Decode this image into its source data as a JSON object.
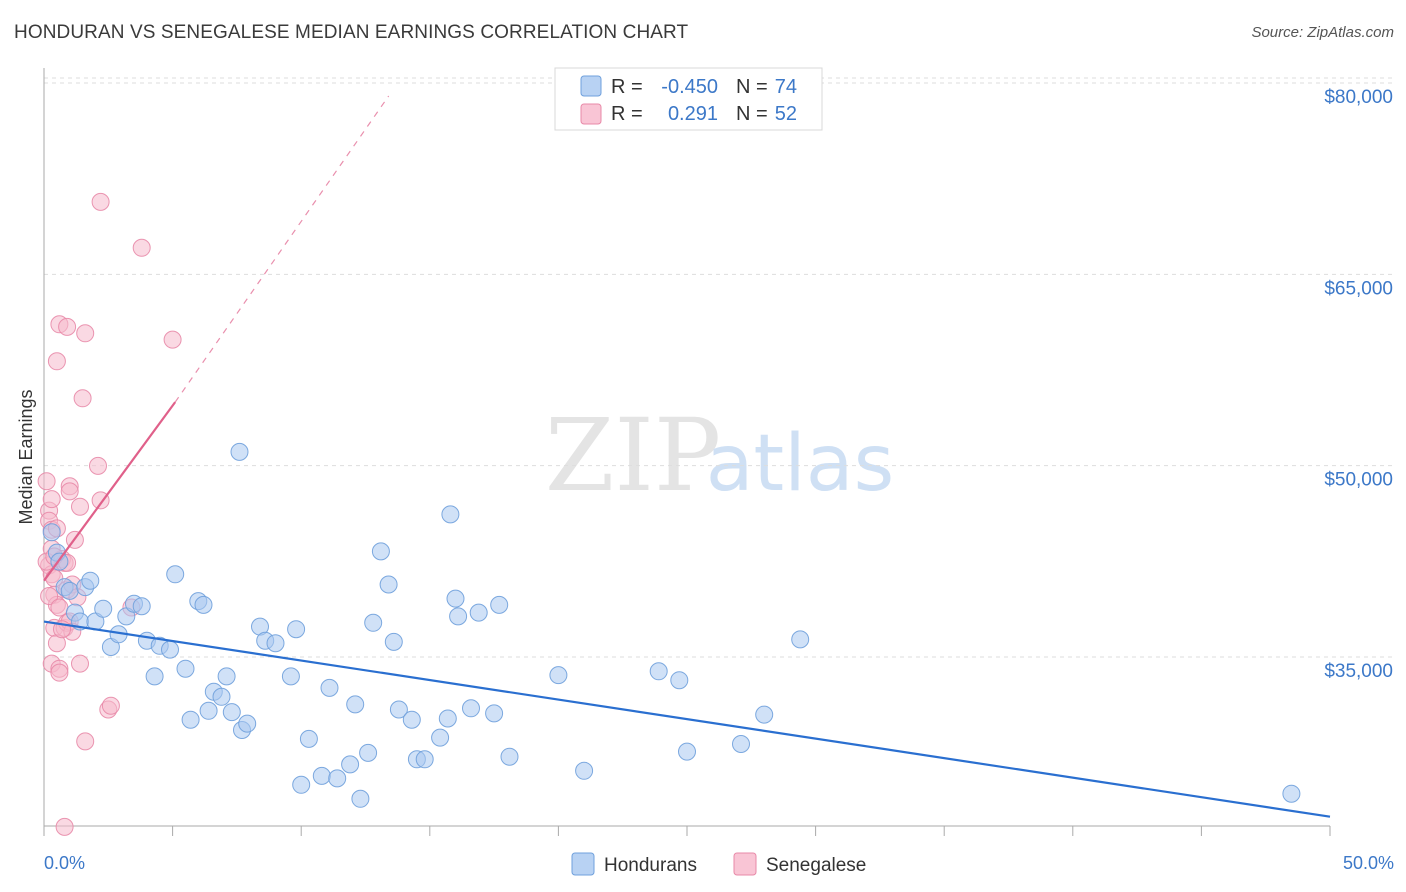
{
  "title": "HONDURAN VS SENEGALESE MEDIAN EARNINGS CORRELATION CHART",
  "source": "Source: ZipAtlas.com",
  "watermark": {
    "zip": "ZIP",
    "atlas": "atlas"
  },
  "colors": {
    "blue_fill": "#a9c8f0",
    "blue_stroke": "#6fa0dc",
    "blue_line": "#2a6fd0",
    "pink_fill": "#f6b9cc",
    "pink_stroke": "#e889a8",
    "pink_line": "#e0608a",
    "grid": "#dddddd",
    "tick_text": "#3c78c8"
  },
  "legend": {
    "rows": [
      {
        "r_label": "R =",
        "r_value": "-0.450",
        "n_label": "N =",
        "n_value": "74"
      },
      {
        "r_label": "R =",
        "r_value": "0.291",
        "n_label": "N =",
        "n_value": "52"
      }
    ]
  },
  "chart_data": {
    "type": "scatter",
    "title": "HONDURAN VS SENEGALESE MEDIAN EARNINGS CORRELATION CHART",
    "xlabel": "",
    "ylabel": "Median Earnings",
    "xlim": [
      0,
      50
    ],
    "ylim": [
      20000,
      82000
    ],
    "x_tick_labels": [
      "0.0%",
      "50.0%"
    ],
    "y_ticks": [
      35000,
      50000,
      65000,
      80000
    ],
    "y_tick_labels": [
      "$35,000",
      "$50,000",
      "$65,000",
      "$80,000"
    ],
    "series": [
      {
        "name": "Hondurans",
        "r": -0.45,
        "n": 74,
        "trend": {
          "x": [
            0,
            50
          ],
          "y": [
            38800,
            23500
          ],
          "dashed_extension": false
        },
        "points": [
          [
            0.3,
            45800
          ],
          [
            0.5,
            44200
          ],
          [
            0.6,
            43500
          ],
          [
            0.8,
            41500
          ],
          [
            1.0,
            41200
          ],
          [
            1.2,
            39500
          ],
          [
            1.4,
            38800
          ],
          [
            1.6,
            41500
          ],
          [
            1.8,
            42000
          ],
          [
            2.0,
            38800
          ],
          [
            2.3,
            39800
          ],
          [
            2.6,
            36800
          ],
          [
            2.9,
            37800
          ],
          [
            3.2,
            39200
          ],
          [
            3.5,
            40200
          ],
          [
            3.8,
            40000
          ],
          [
            4.0,
            37300
          ],
          [
            4.3,
            34500
          ],
          [
            4.5,
            36900
          ],
          [
            4.9,
            36600
          ],
          [
            5.1,
            42500
          ],
          [
            5.5,
            35100
          ],
          [
            5.7,
            31100
          ],
          [
            6.0,
            40400
          ],
          [
            6.2,
            40100
          ],
          [
            6.4,
            31800
          ],
          [
            6.6,
            33300
          ],
          [
            6.9,
            32900
          ],
          [
            7.1,
            34500
          ],
          [
            7.3,
            31700
          ],
          [
            7.7,
            30300
          ],
          [
            7.9,
            30800
          ],
          [
            7.6,
            52100
          ],
          [
            8.4,
            38400
          ],
          [
            8.6,
            37300
          ],
          [
            9.0,
            37100
          ],
          [
            9.6,
            34500
          ],
          [
            9.8,
            38200
          ],
          [
            10.0,
            26000
          ],
          [
            10.3,
            29600
          ],
          [
            10.8,
            26700
          ],
          [
            11.1,
            33600
          ],
          [
            11.4,
            26500
          ],
          [
            11.9,
            27600
          ],
          [
            12.1,
            32300
          ],
          [
            12.3,
            24900
          ],
          [
            12.6,
            28500
          ],
          [
            12.8,
            38700
          ],
          [
            13.1,
            44300
          ],
          [
            13.4,
            41700
          ],
          [
            13.6,
            37200
          ],
          [
            13.8,
            31900
          ],
          [
            14.3,
            31100
          ],
          [
            14.5,
            28000
          ],
          [
            14.8,
            28000
          ],
          [
            15.4,
            29700
          ],
          [
            15.7,
            31200
          ],
          [
            15.8,
            47200
          ],
          [
            16.0,
            40600
          ],
          [
            16.1,
            39200
          ],
          [
            16.6,
            32000
          ],
          [
            16.9,
            39500
          ],
          [
            17.5,
            31600
          ],
          [
            17.7,
            40100
          ],
          [
            18.1,
            28200
          ],
          [
            20.0,
            34600
          ],
          [
            21.0,
            27100
          ],
          [
            23.9,
            34900
          ],
          [
            24.7,
            34200
          ],
          [
            25.0,
            28600
          ],
          [
            27.1,
            29200
          ],
          [
            28.0,
            31500
          ],
          [
            29.4,
            37400
          ],
          [
            48.5,
            25300
          ]
        ]
      },
      {
        "name": "Senegalese",
        "r": 0.291,
        "n": 52,
        "trend": {
          "x": [
            0,
            5.1
          ],
          "y": [
            42000,
            56000
          ],
          "dashed_to": [
            13.4,
            80000
          ]
        },
        "points": [
          [
            0.1,
            49800
          ],
          [
            0.2,
            47500
          ],
          [
            0.2,
            46700
          ],
          [
            0.3,
            46000
          ],
          [
            0.3,
            44500
          ],
          [
            0.2,
            43200
          ],
          [
            0.3,
            42500
          ],
          [
            0.4,
            42200
          ],
          [
            0.4,
            40900
          ],
          [
            0.5,
            40100
          ],
          [
            0.4,
            38300
          ],
          [
            0.5,
            37100
          ],
          [
            0.3,
            35500
          ],
          [
            0.6,
            35100
          ],
          [
            0.6,
            34800
          ],
          [
            0.5,
            59200
          ],
          [
            0.6,
            62100
          ],
          [
            0.7,
            43700
          ],
          [
            0.8,
            43400
          ],
          [
            0.8,
            38300
          ],
          [
            0.9,
            38700
          ],
          [
            0.9,
            41300
          ],
          [
            0.9,
            61900
          ],
          [
            1.0,
            49400
          ],
          [
            1.0,
            49000
          ],
          [
            1.0,
            38800
          ],
          [
            1.1,
            41700
          ],
          [
            1.1,
            38000
          ],
          [
            1.2,
            45200
          ],
          [
            1.3,
            40700
          ],
          [
            1.4,
            47800
          ],
          [
            1.4,
            35500
          ],
          [
            1.5,
            56300
          ],
          [
            1.6,
            61400
          ],
          [
            1.6,
            29400
          ],
          [
            2.2,
            71700
          ],
          [
            2.1,
            51000
          ],
          [
            2.2,
            48300
          ],
          [
            2.5,
            31900
          ],
          [
            2.6,
            32200
          ],
          [
            3.4,
            39900
          ],
          [
            3.8,
            68100
          ],
          [
            5.0,
            60900
          ],
          [
            0.8,
            22700
          ],
          [
            0.1,
            43500
          ],
          [
            0.2,
            40800
          ],
          [
            0.4,
            43900
          ],
          [
            0.5,
            46100
          ],
          [
            0.7,
            38200
          ],
          [
            0.6,
            39900
          ],
          [
            0.3,
            48400
          ],
          [
            0.9,
            43400
          ]
        ]
      }
    ],
    "legend": [
      "Hondurans",
      "Senegalese"
    ],
    "grid": true
  }
}
